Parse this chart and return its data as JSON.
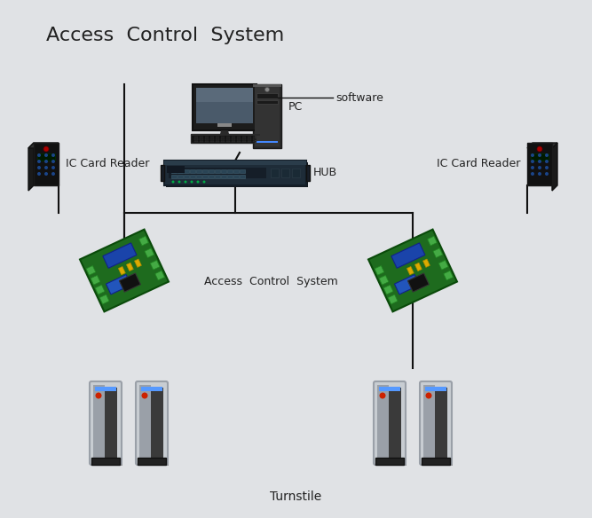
{
  "title": "Access  Control  System",
  "bg_color": "#e0e2e5",
  "text_color": "#222222",
  "line_color": "#111111",
  "labels": {
    "pc": "PC",
    "software": "software",
    "hub": "HUB",
    "ic_left": "IC Card Reader",
    "ic_right": "IC Card Reader",
    "acs": "Access  Control  System",
    "turnstile": "Turnstile"
  },
  "font_size_title": 16,
  "font_size_label": 9,
  "font_size_small": 8
}
